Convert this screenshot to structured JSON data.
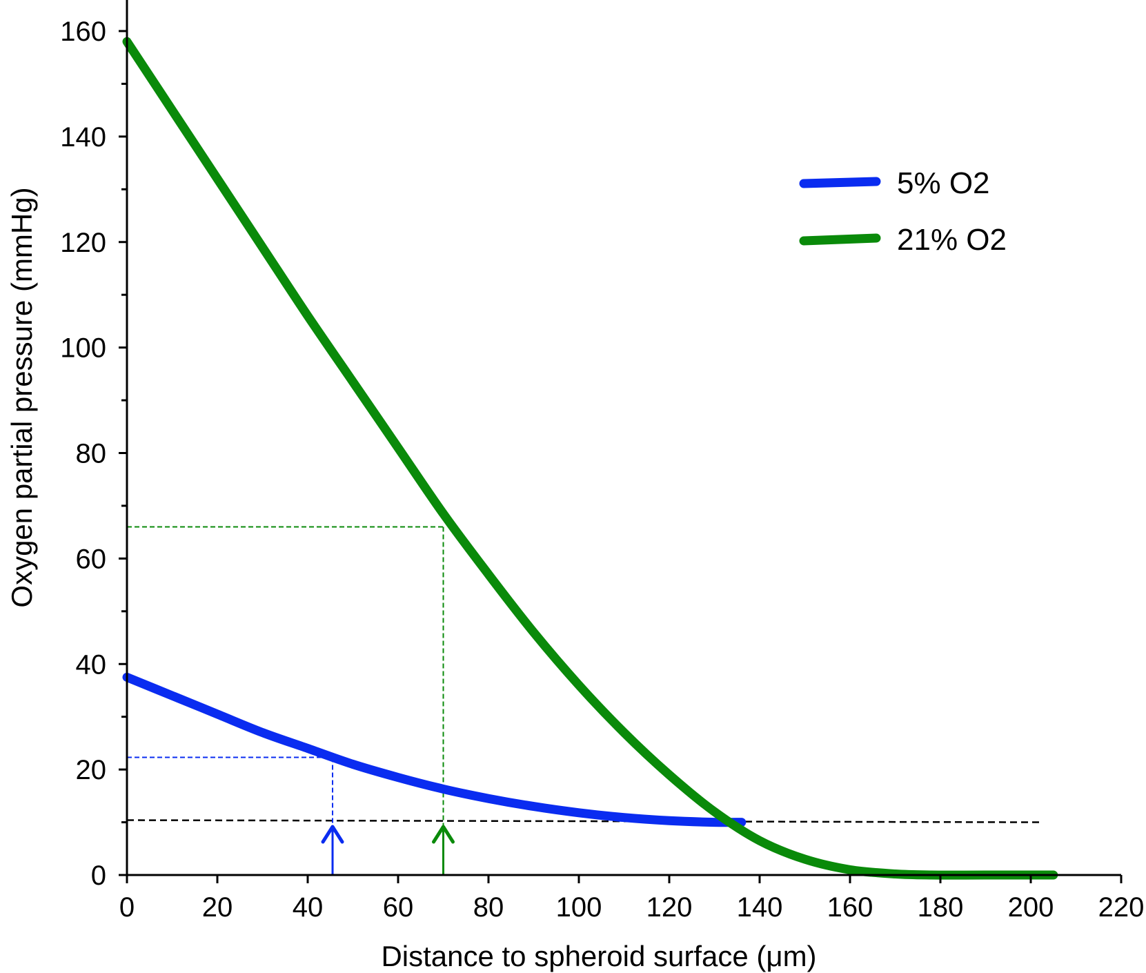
{
  "chart_data": {
    "type": "line",
    "title": "",
    "xlabel": "Distance to spheroid surface (μm)",
    "ylabel": "Oxygen partial pressure (mmHg)",
    "xlim": [
      0,
      220
    ],
    "ylim": [
      0,
      160
    ],
    "xticks": [
      0,
      20,
      40,
      60,
      80,
      100,
      120,
      140,
      160,
      180,
      200,
      220
    ],
    "yticks": [
      0,
      20,
      40,
      60,
      80,
      100,
      120,
      140,
      160
    ],
    "legend_position": "top-right",
    "grid": false,
    "series": [
      {
        "name": "5% O2",
        "color": "#0a2cf0",
        "x": [
          0,
          10,
          20,
          30,
          40,
          50,
          60,
          70,
          80,
          90,
          100,
          110,
          120,
          130,
          136
        ],
        "y": [
          37.5,
          34,
          30.5,
          27,
          24,
          21,
          18.5,
          16.3,
          14.5,
          13,
          11.8,
          10.9,
          10.3,
          10.0,
          10.0
        ]
      },
      {
        "name": "21% O2",
        "color": "#0a8a0a",
        "x": [
          0,
          10,
          20,
          30,
          40,
          50,
          60,
          70,
          80,
          90,
          100,
          110,
          120,
          130,
          140,
          150,
          160,
          170,
          178,
          190,
          205
        ],
        "y": [
          158,
          145,
          132,
          119,
          106,
          93.5,
          81,
          68.5,
          57,
          46,
          36,
          27,
          19,
          12,
          6.5,
          3,
          1,
          0.2,
          0,
          0,
          0
        ]
      }
    ],
    "reference_lines": [
      {
        "name": "threshold",
        "color": "#000000",
        "style": "dashed",
        "x": [
          0,
          202
        ],
        "y": [
          10.4,
          10
        ]
      },
      {
        "name": "5% O2 marker",
        "color": "#0a2cf0",
        "style": "dashed",
        "x_value": 45.5,
        "y_value": 22.3
      },
      {
        "name": "21% O2 marker",
        "color": "#0a8a0a",
        "style": "dashed",
        "x_value": 70,
        "y_value": 66
      }
    ],
    "arrows": [
      {
        "color": "#0a2cf0",
        "x": 45.5
      },
      {
        "color": "#0a8a0a",
        "x": 70
      }
    ]
  }
}
